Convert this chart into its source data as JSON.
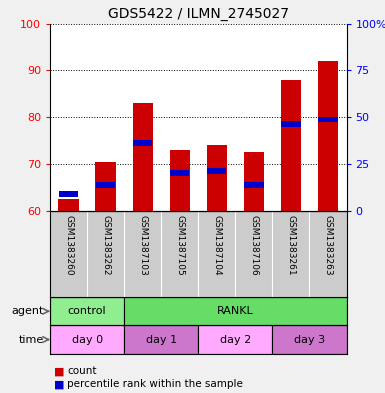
{
  "title": "GDS5422 / ILMN_2745027",
  "samples": [
    "GSM1383260",
    "GSM1383262",
    "GSM1387103",
    "GSM1387105",
    "GSM1387104",
    "GSM1387106",
    "GSM1383261",
    "GSM1383263"
  ],
  "count_values": [
    62.5,
    70.5,
    83.0,
    73.0,
    74.0,
    72.5,
    88.0,
    92.0
  ],
  "percentile_values": [
    63.5,
    65.5,
    74.5,
    68.0,
    68.5,
    65.5,
    78.5,
    79.5
  ],
  "ylim": [
    60,
    100
  ],
  "y2lim": [
    0,
    100
  ],
  "y_ticks": [
    60,
    70,
    80,
    90,
    100
  ],
  "y2_ticks": [
    0,
    25,
    50,
    75,
    100
  ],
  "y2_labels": [
    "0",
    "25",
    "50",
    "75",
    "100%"
  ],
  "bar_color": "#cc0000",
  "blue_color": "#0000cc",
  "bar_width": 0.55,
  "agent_groups": [
    {
      "label": "control",
      "start": 0,
      "end": 2,
      "color": "#90ee90"
    },
    {
      "label": "RANKL",
      "start": 2,
      "end": 8,
      "color": "#66dd66"
    }
  ],
  "time_groups": [
    {
      "label": "day 0",
      "start": 0,
      "end": 2,
      "color": "#ffaaff"
    },
    {
      "label": "day 1",
      "start": 2,
      "end": 4,
      "color": "#cc77cc"
    },
    {
      "label": "day 2",
      "start": 4,
      "end": 6,
      "color": "#ffaaff"
    },
    {
      "label": "day 3",
      "start": 6,
      "end": 8,
      "color": "#cc77cc"
    }
  ],
  "agent_label": "agent",
  "time_label": "time",
  "legend_count": "count",
  "legend_percentile": "percentile rank within the sample",
  "plot_bg_color": "#ffffff",
  "sample_bg_color": "#cccccc",
  "fig_bg_color": "#f0f0f0"
}
